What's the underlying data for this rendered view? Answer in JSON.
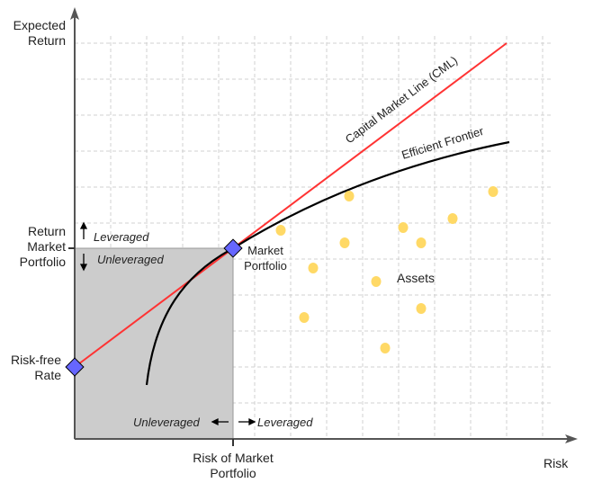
{
  "axes": {
    "y_label": [
      "Expected",
      "Return"
    ],
    "x_label": "Risk",
    "y_tick_label": [
      "Return",
      "Market",
      "Portfolio"
    ],
    "x_tick_label": [
      "Risk of Market",
      "Portfolio"
    ]
  },
  "lines": {
    "cml_label": "Capital Market Line (CML)",
    "frontier_label": "Efficient Frontier"
  },
  "points": {
    "risk_free": [
      "Risk-free",
      "Rate"
    ],
    "market": [
      "Market",
      "Portfolio"
    ],
    "assets_label": "Assets"
  },
  "annotations": {
    "leveraged": "Leveraged",
    "unleveraged": "Unleveraged"
  },
  "colors": {
    "cml": "#ff3333",
    "frontier": "#000000",
    "asset": "#ffd966",
    "marker": "#6666ff",
    "shade": "#cccccc"
  }
}
